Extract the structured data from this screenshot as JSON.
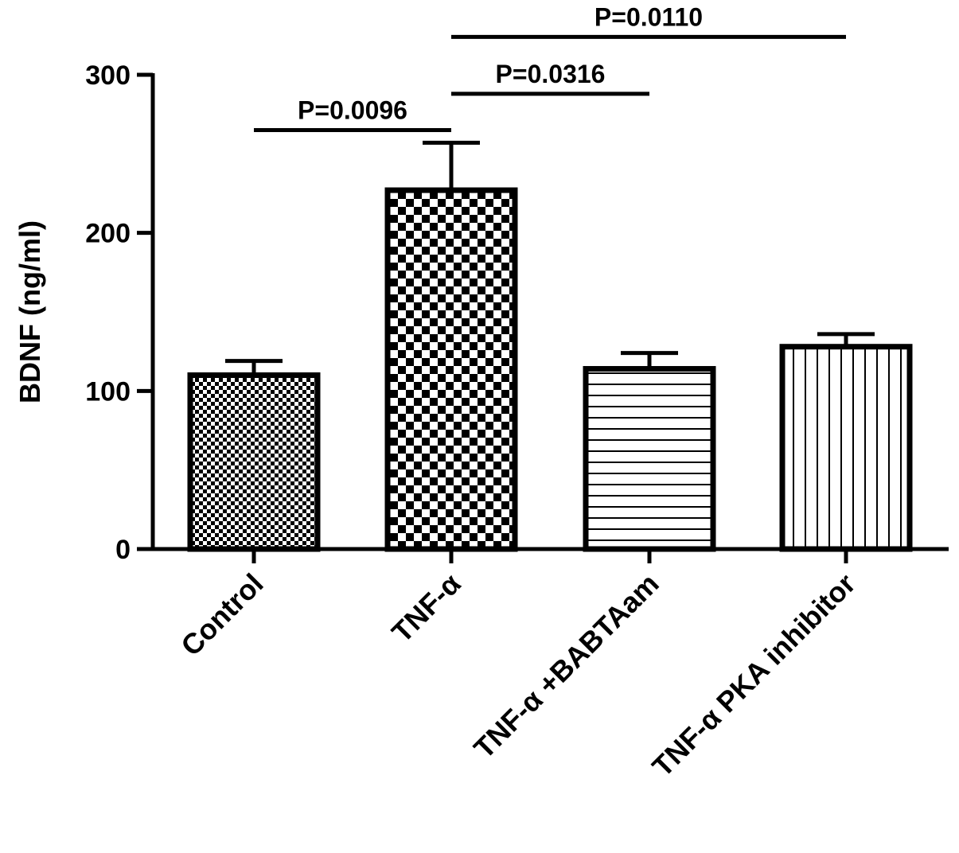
{
  "chart_data": {
    "type": "bar",
    "title": "",
    "xlabel": "",
    "ylabel": "BDNF (ng/ml)",
    "ylim": [
      0,
      300
    ],
    "yticks": [
      0,
      100,
      200,
      300
    ],
    "categories": [
      "Control",
      "TNF-α",
      "TNF-α +BABTAam",
      "TNF-α PKA inhibitor"
    ],
    "values": [
      110,
      227,
      114,
      128
    ],
    "errors": [
      9,
      30,
      10,
      8
    ],
    "fill_patterns": [
      "fine-checker",
      "coarse-checker",
      "horizontal-lines",
      "vertical-lines"
    ],
    "significance": [
      {
        "from": 0,
        "to": 1,
        "label": "P=0.0096",
        "y": 265
      },
      {
        "from": 1,
        "to": 2,
        "label": "P=0.0316",
        "y": 288
      },
      {
        "from": 1,
        "to": 3,
        "label": "P=0.0110",
        "y": 324
      }
    ],
    "grid": false,
    "legend": "none"
  },
  "colors": {
    "bar_stroke": "#000000",
    "background": "#ffffff"
  }
}
